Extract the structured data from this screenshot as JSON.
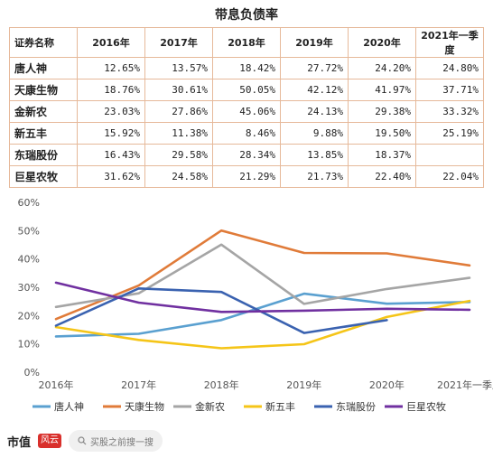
{
  "table": {
    "title": "带息负债率",
    "header_name": "证券名称",
    "columns": [
      "2016年",
      "2017年",
      "2018年",
      "2019年",
      "2020年",
      "2021年一季度"
    ],
    "rows": [
      {
        "name": "唐人神",
        "values": [
          "12.65%",
          "13.57%",
          "18.42%",
          "27.72%",
          "24.20%",
          "24.80%"
        ]
      },
      {
        "name": "天康生物",
        "values": [
          "18.76%",
          "30.61%",
          "50.05%",
          "42.12%",
          "41.97%",
          "37.71%"
        ]
      },
      {
        "name": "金新农",
        "values": [
          "23.03%",
          "27.86%",
          "45.06%",
          "24.13%",
          "29.38%",
          "33.32%"
        ]
      },
      {
        "name": "新五丰",
        "values": [
          "15.92%",
          "11.38%",
          "8.46%",
          "9.88%",
          "19.50%",
          "25.19%"
        ]
      },
      {
        "name": "东瑞股份",
        "values": [
          "16.43%",
          "29.58%",
          "28.34%",
          "13.85%",
          "18.37%",
          ""
        ]
      },
      {
        "name": "巨星农牧",
        "values": [
          "31.62%",
          "24.58%",
          "21.29%",
          "21.73%",
          "22.40%",
          "22.04%"
        ]
      }
    ]
  },
  "chart_data": {
    "type": "line",
    "x": [
      "2016年",
      "2017年",
      "2018年",
      "2019年",
      "2020年",
      "2021年一季度"
    ],
    "ylim": [
      0,
      60
    ],
    "yticks": [
      "0%",
      "10%",
      "20%",
      "30%",
      "40%",
      "50%",
      "60%"
    ],
    "grid": false,
    "legend_position": "bottom",
    "series": [
      {
        "name": "唐人神",
        "color": "#5aa0d0",
        "values": [
          12.65,
          13.57,
          18.42,
          27.72,
          24.2,
          24.8
        ]
      },
      {
        "name": "天康生物",
        "color": "#e07b39",
        "values": [
          18.76,
          30.61,
          50.05,
          42.12,
          41.97,
          37.71
        ]
      },
      {
        "name": "金新农",
        "color": "#a5a5a5",
        "values": [
          23.03,
          27.86,
          45.06,
          24.13,
          29.38,
          33.32
        ]
      },
      {
        "name": "新五丰",
        "color": "#f5c518",
        "values": [
          15.92,
          11.38,
          8.46,
          9.88,
          19.5,
          25.19
        ]
      },
      {
        "name": "东瑞股份",
        "color": "#3a62b0",
        "values": [
          16.43,
          29.58,
          28.34,
          13.85,
          18.37,
          null
        ]
      },
      {
        "name": "巨星农牧",
        "color": "#7030a0",
        "values": [
          31.62,
          24.58,
          21.29,
          21.73,
          22.4,
          22.04
        ]
      }
    ]
  },
  "footer": {
    "brand": "市值",
    "logo_text": "风云",
    "search_placeholder": "买股之前搜一搜",
    "search_icon": "search-icon"
  }
}
